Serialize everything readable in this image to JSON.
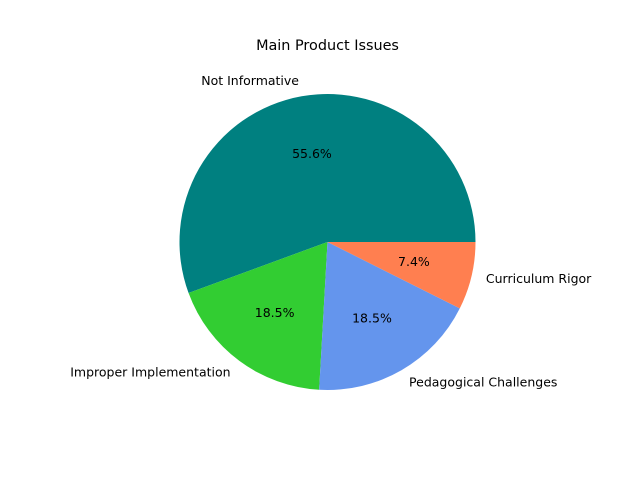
{
  "chart_data": {
    "type": "pie",
    "title": "Main Product Issues",
    "categories": [
      "Not Informative",
      "Improper Implementation",
      "Pedagogical Challenges",
      "Curriculum Rigor"
    ],
    "values": [
      55.6,
      18.5,
      18.5,
      7.4
    ],
    "percent_labels": [
      "55.6%",
      "18.5%",
      "18.5%",
      "7.4%"
    ],
    "colors": [
      "#008080",
      "#32cd32",
      "#6495ed",
      "#ff7f50"
    ],
    "start_angle_deg": 0,
    "direction": "counterclockwise",
    "legend": "none"
  }
}
